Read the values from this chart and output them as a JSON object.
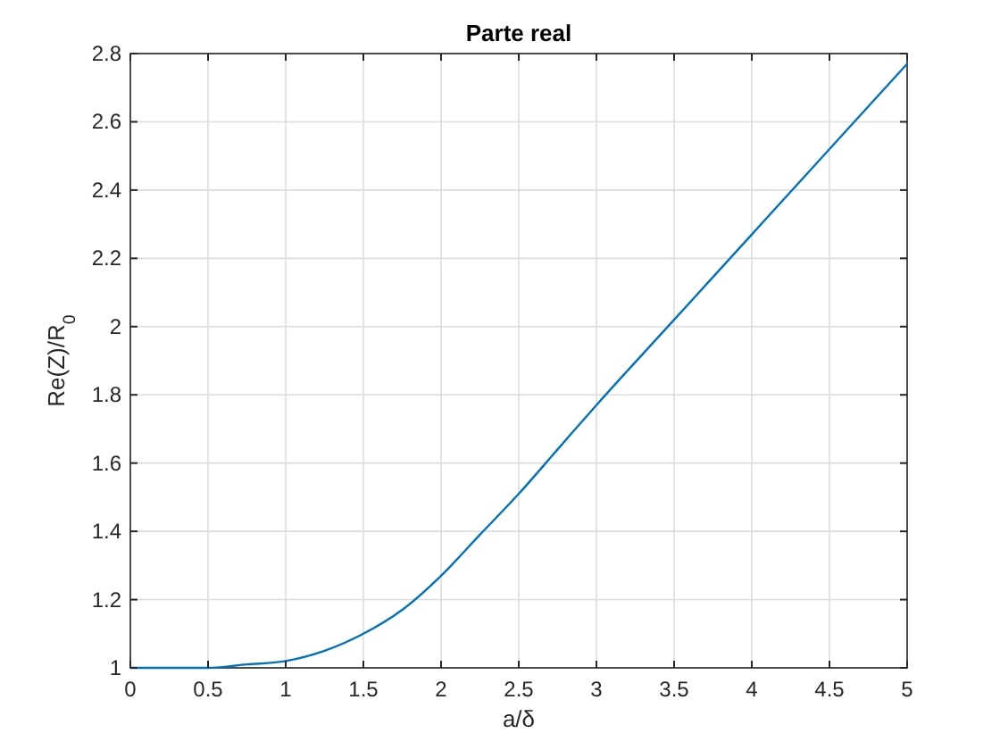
{
  "chart_data": {
    "type": "line",
    "title": "Parte real",
    "xlabel": "a/δ",
    "ylabel": "Re(Z)/R$_{0}$",
    "x": [
      0,
      0.5,
      0.75,
      1,
      1.25,
      1.5,
      1.75,
      2,
      2.25,
      2.5,
      2.75,
      3,
      3.5,
      4,
      4.5,
      5
    ],
    "series": [
      {
        "color": "#0072bd",
        "values": [
          1,
          1,
          1.01,
          1.02,
          1.05,
          1.1,
          1.17,
          1.27,
          1.39,
          1.51,
          1.64,
          1.77,
          2.02,
          2.27,
          2.52,
          2.77
        ]
      }
    ],
    "xlim": [
      0,
      5
    ],
    "xticks": [
      0,
      0.5,
      1,
      1.5,
      2,
      2.5,
      3,
      3.5,
      4,
      4.5,
      5
    ],
    "ylim": [
      1,
      2.8
    ],
    "yticks": [
      1,
      1.2,
      1.4,
      1.6,
      1.8,
      2,
      2.2,
      2.4,
      2.6,
      2.8
    ],
    "grid": true,
    "marker": "none",
    "line_style": "solid"
  }
}
